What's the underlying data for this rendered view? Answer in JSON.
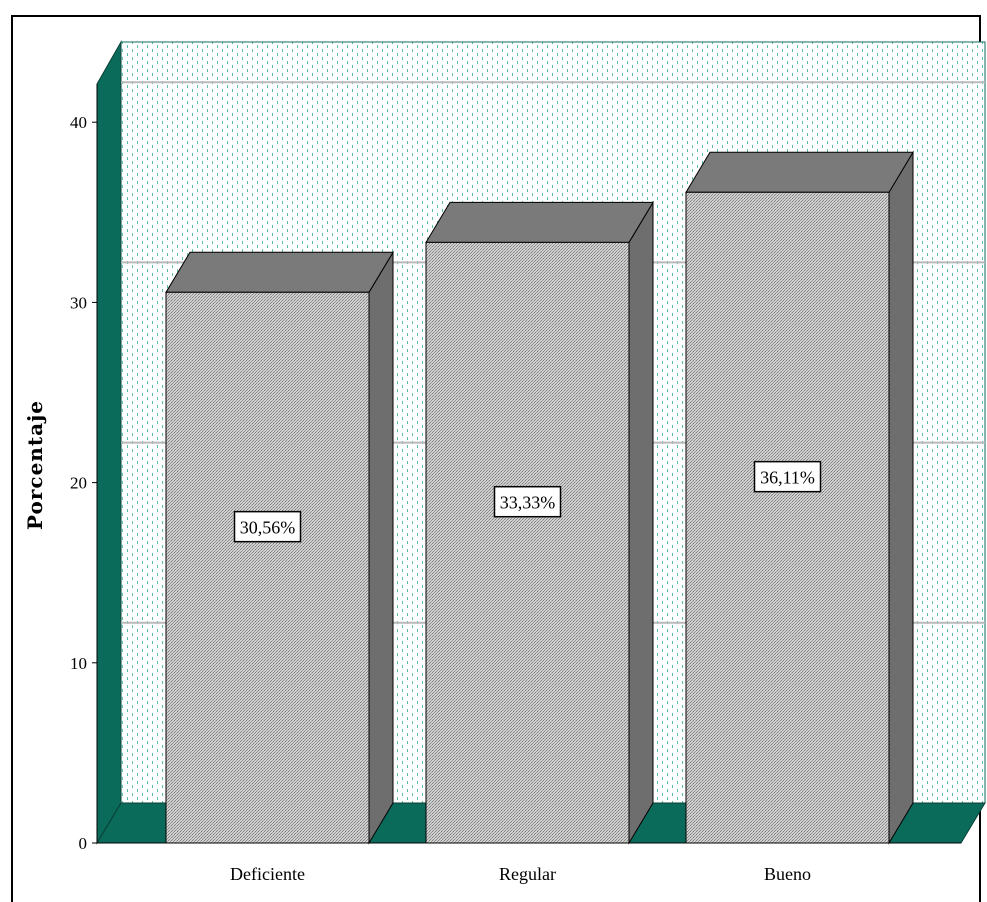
{
  "chart_data": {
    "type": "bar",
    "style": "3d",
    "categories": [
      "Deficiente",
      "Regular",
      "Bueno"
    ],
    "values": [
      30.56,
      33.33,
      36.11
    ],
    "data_labels": [
      "30,56%",
      "33,33%",
      "36,11%"
    ],
    "ylabel": "Porcentaje",
    "xlabel": "",
    "ylim": [
      0,
      40
    ],
    "yticks": [
      "0",
      "10",
      "20",
      "30",
      "40"
    ],
    "grid": true,
    "legend": "none",
    "colors": {
      "bar_front": "#bdbdbd",
      "bar_top": "#7a7a7a",
      "bar_side": "#6e6e6e",
      "floor": "#0b6b5a",
      "wall_dots": "#5bbfae",
      "gridline": "#b9b9b9"
    }
  }
}
